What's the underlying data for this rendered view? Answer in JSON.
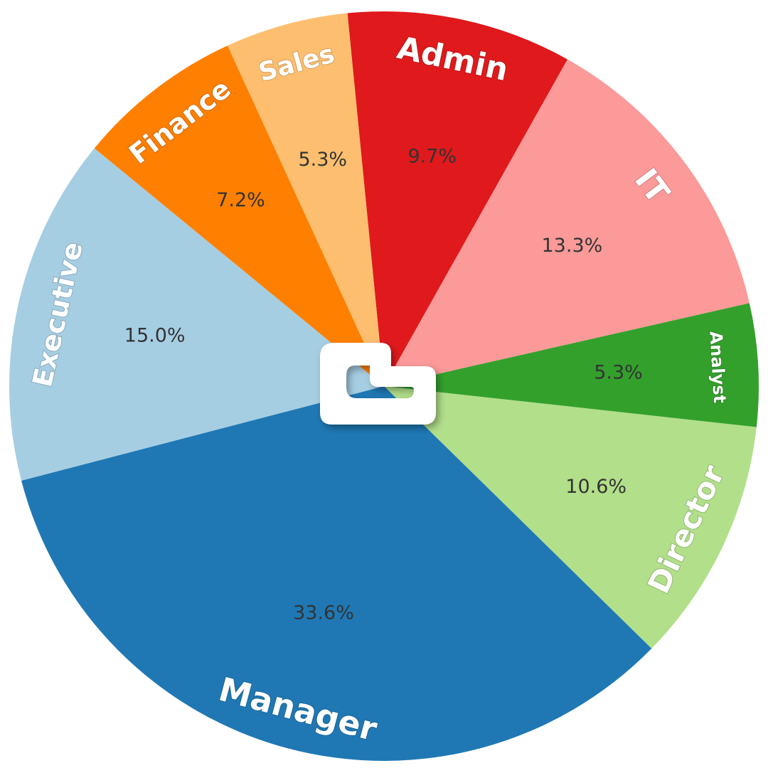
{
  "chart_data": {
    "type": "pie",
    "title": "",
    "slices": [
      {
        "label": "Admin",
        "value": 9.7,
        "pct_text": "9.7%",
        "color": "#e0191c"
      },
      {
        "label": "IT",
        "value": 13.3,
        "pct_text": "13.3%",
        "color": "#fb9a99"
      },
      {
        "label": "Analyst",
        "value": 5.3,
        "pct_text": "5.3%",
        "color": "#33a02c"
      },
      {
        "label": "Director",
        "value": 10.6,
        "pct_text": "10.6%",
        "color": "#b2df8a"
      },
      {
        "label": "Manager",
        "value": 33.6,
        "pct_text": "33.6%",
        "color": "#1f78b4"
      },
      {
        "label": "Executive",
        "value": 15.0,
        "pct_text": "15.0%",
        "color": "#a6cee3"
      },
      {
        "label": "Finance",
        "value": 7.2,
        "pct_text": "7.2%",
        "color": "#ff7f00"
      },
      {
        "label": "Sales",
        "value": 5.3,
        "pct_text": "5.3%",
        "color": "#fdbf6f"
      }
    ]
  },
  "center_logo": {
    "icon": "c-logo-icon",
    "color": "#ffffff"
  }
}
